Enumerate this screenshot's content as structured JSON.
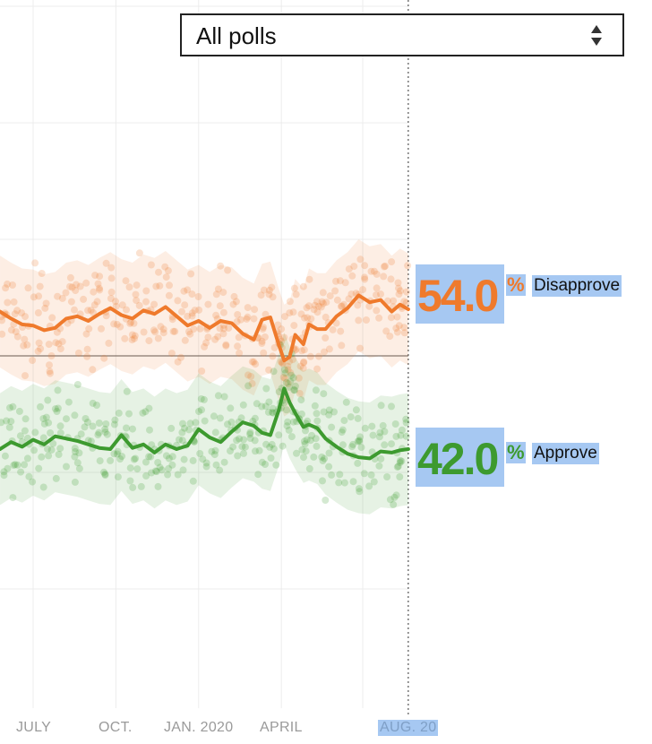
{
  "filter": {
    "selected": "All polls"
  },
  "chart_data": {
    "type": "line",
    "x_ticks": [
      "JULY",
      "OCT.",
      "JAN. 2020",
      "APRIL",
      "AUG. 20"
    ],
    "x_tick_months": [
      0,
      3,
      6,
      9,
      13.6
    ],
    "y_reference": 50,
    "y_range": [
      28,
      69
    ],
    "grid": true,
    "current": {
      "month": 13.6,
      "label": "AUG. 20"
    },
    "series": [
      {
        "name": "Disapprove",
        "color": "#ef7a2c",
        "current_value": "54.0",
        "points": [
          [
            -1.2,
            53.8
          ],
          [
            -0.8,
            53.2
          ],
          [
            -0.4,
            52.7
          ],
          [
            0,
            52.6
          ],
          [
            0.4,
            52.2
          ],
          [
            0.8,
            52.4
          ],
          [
            1.2,
            53.2
          ],
          [
            1.6,
            53.4
          ],
          [
            2,
            53.0
          ],
          [
            2.4,
            53.6
          ],
          [
            2.8,
            54.1
          ],
          [
            3.2,
            53.5
          ],
          [
            3.6,
            53.2
          ],
          [
            4,
            53.9
          ],
          [
            4.4,
            53.6
          ],
          [
            4.8,
            54.2
          ],
          [
            5.2,
            53.4
          ],
          [
            5.6,
            52.6
          ],
          [
            6,
            53.0
          ],
          [
            6.4,
            52.4
          ],
          [
            6.8,
            53.0
          ],
          [
            7.2,
            52.8
          ],
          [
            7.6,
            51.9
          ],
          [
            8,
            51.4
          ],
          [
            8.3,
            53.1
          ],
          [
            8.6,
            53.3
          ],
          [
            8.9,
            51.0
          ],
          [
            9.1,
            49.6
          ],
          [
            9.3,
            49.9
          ],
          [
            9.5,
            51.8
          ],
          [
            9.8,
            51.0
          ],
          [
            10,
            52.7
          ],
          [
            10.3,
            52.3
          ],
          [
            10.6,
            52.3
          ],
          [
            11,
            53.4
          ],
          [
            11.4,
            54.1
          ],
          [
            11.8,
            55.2
          ],
          [
            12.2,
            54.6
          ],
          [
            12.6,
            54.8
          ],
          [
            13,
            53.8
          ],
          [
            13.3,
            54.4
          ],
          [
            13.6,
            54.0
          ]
        ]
      },
      {
        "name": "Approve",
        "color": "#3d9a2f",
        "current_value": "42.0",
        "points": [
          [
            -1.2,
            42.0
          ],
          [
            -0.8,
            42.6
          ],
          [
            -0.4,
            42.2
          ],
          [
            0,
            42.8
          ],
          [
            0.4,
            42.4
          ],
          [
            0.8,
            43.1
          ],
          [
            1.2,
            42.9
          ],
          [
            1.6,
            42.7
          ],
          [
            2,
            42.4
          ],
          [
            2.4,
            42.1
          ],
          [
            2.8,
            42.0
          ],
          [
            3.2,
            43.2
          ],
          [
            3.6,
            42.1
          ],
          [
            4,
            42.4
          ],
          [
            4.4,
            41.7
          ],
          [
            4.8,
            42.4
          ],
          [
            5.2,
            42.0
          ],
          [
            5.6,
            42.3
          ],
          [
            6,
            43.7
          ],
          [
            6.4,
            43.0
          ],
          [
            6.8,
            42.6
          ],
          [
            7.2,
            43.5
          ],
          [
            7.6,
            44.3
          ],
          [
            8,
            44.0
          ],
          [
            8.3,
            43.4
          ],
          [
            8.6,
            43.2
          ],
          [
            8.9,
            45.3
          ],
          [
            9.1,
            47.2
          ],
          [
            9.3,
            46.0
          ],
          [
            9.5,
            45.1
          ],
          [
            9.8,
            43.9
          ],
          [
            10,
            44.1
          ],
          [
            10.3,
            43.8
          ],
          [
            10.6,
            42.9
          ],
          [
            11,
            42.2
          ],
          [
            11.4,
            41.6
          ],
          [
            11.8,
            41.3
          ],
          [
            12.2,
            41.2
          ],
          [
            12.6,
            41.8
          ],
          [
            13,
            41.7
          ],
          [
            13.3,
            41.9
          ],
          [
            13.6,
            42.0
          ]
        ]
      }
    ]
  }
}
